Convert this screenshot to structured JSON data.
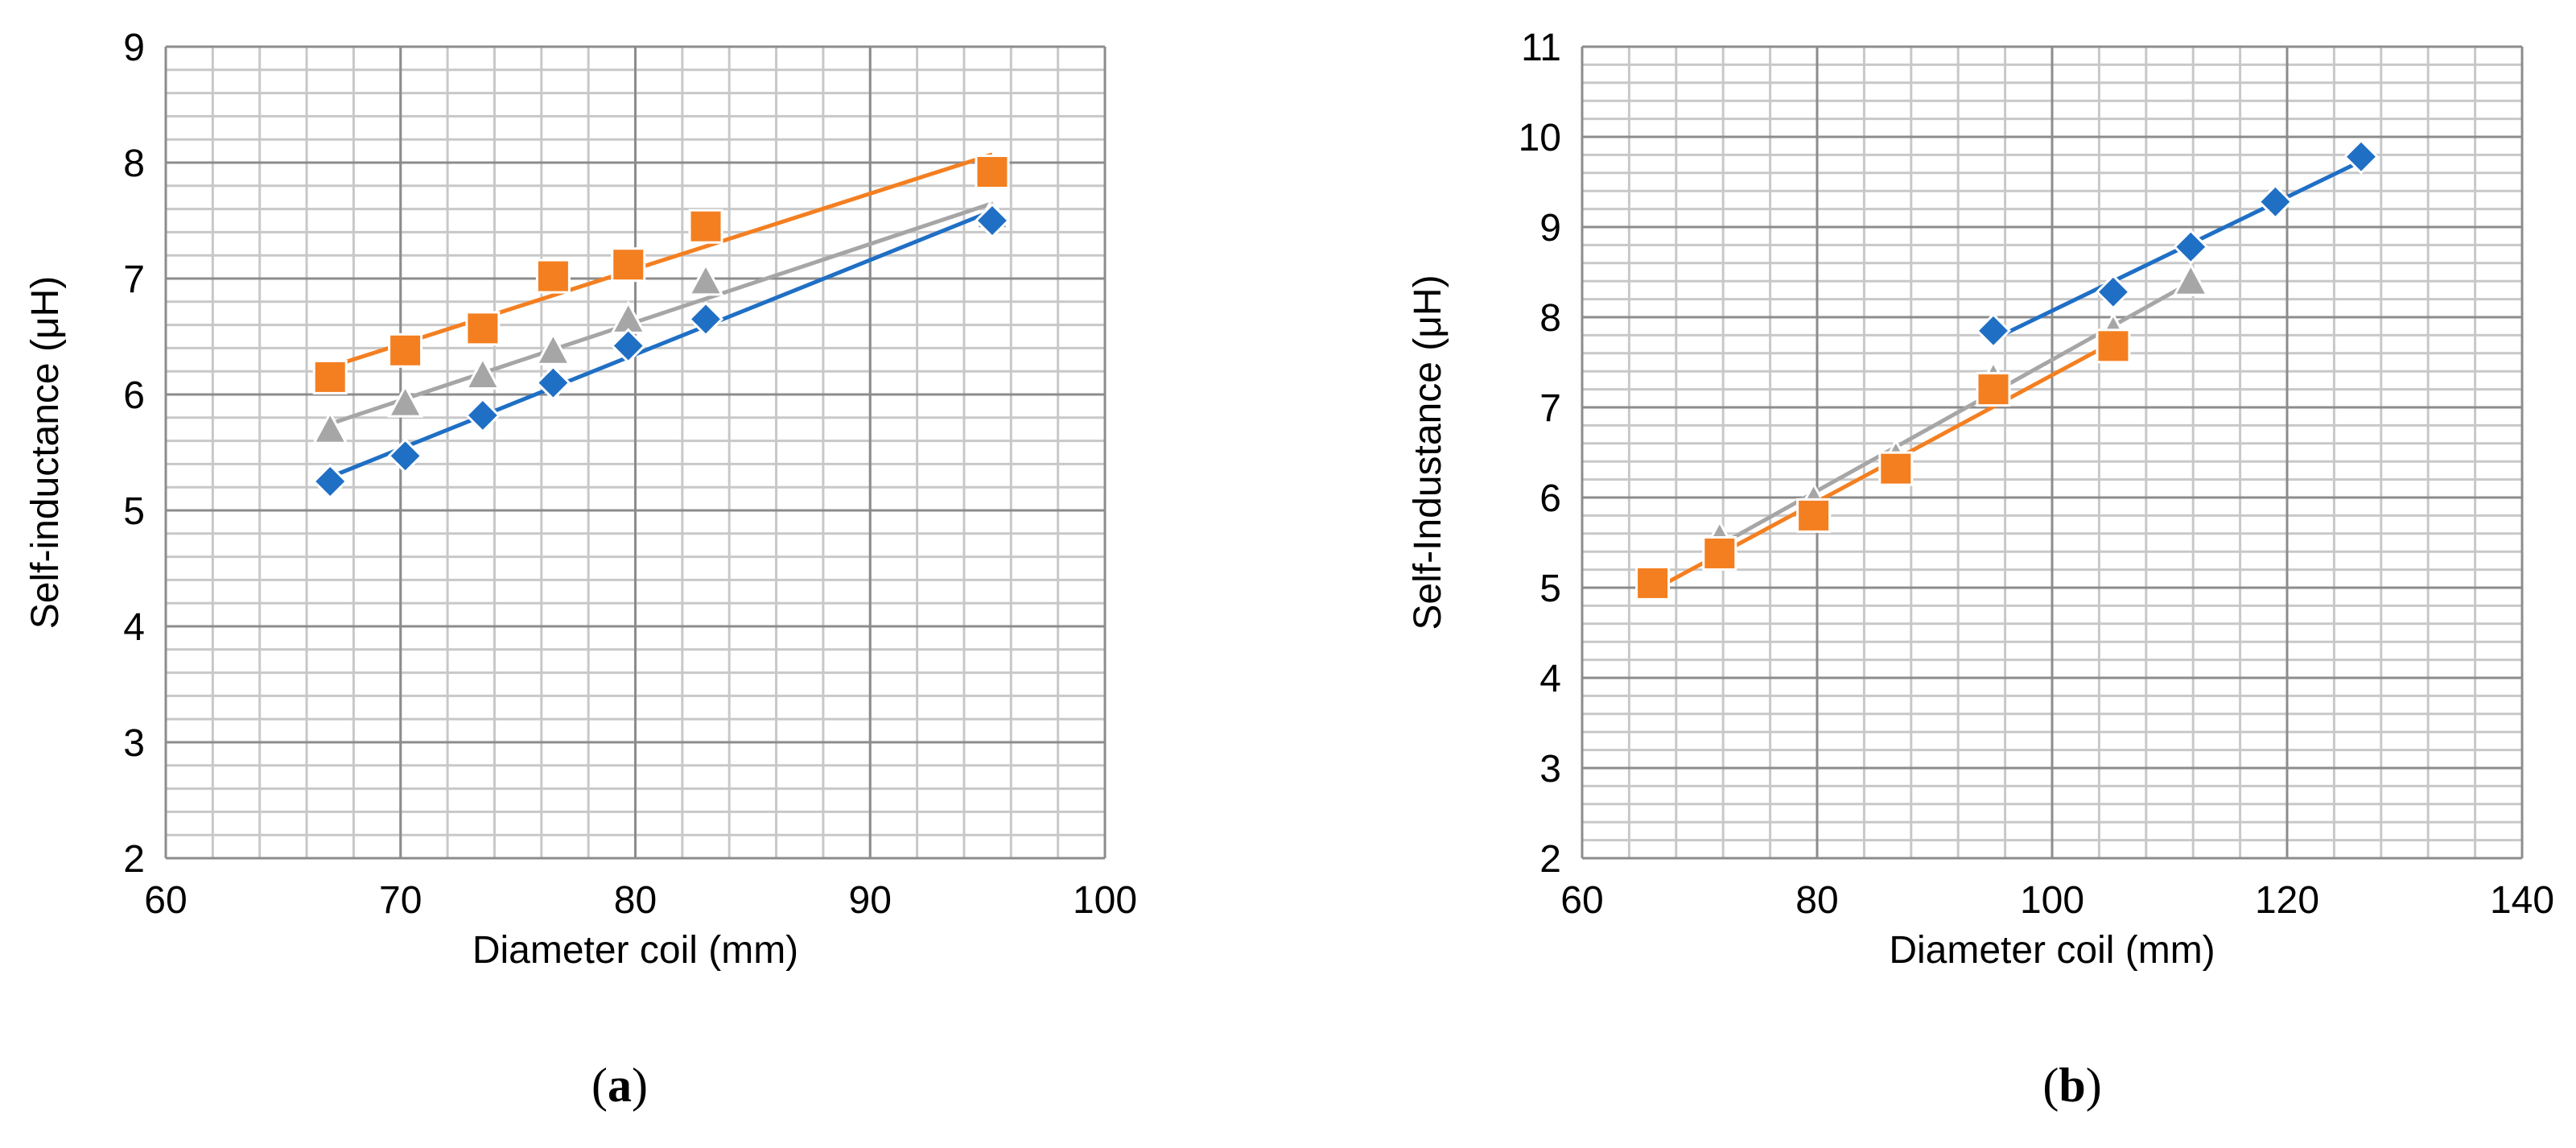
{
  "chart_data": [
    {
      "type": "scatter",
      "panel": "a",
      "panel_open": "(",
      "panel_letter": "a",
      "panel_close": ")",
      "title": "",
      "xlabel": "Diameter coil (mm)",
      "ylabel": "Self-inductance (μH)",
      "xlim": [
        60,
        100
      ],
      "ylim": [
        2,
        9
      ],
      "xticks": [
        "60",
        "70",
        "80",
        "90",
        "100"
      ],
      "yticks": [
        "2",
        "3",
        "4",
        "5",
        "6",
        "7",
        "8",
        "9"
      ],
      "x_minor_step": 2,
      "y_minor_step": 0.2,
      "grid": true,
      "legend": "none",
      "series": [
        {
          "name": "blue",
          "color": "#1f6fc5",
          "marker": "diamond",
          "trendline": "linear",
          "x": [
            67,
            70.2,
            73.5,
            76.5,
            79.7,
            83,
            95.2
          ],
          "y": [
            5.25,
            5.47,
            5.82,
            6.1,
            6.42,
            6.65,
            7.5
          ]
        },
        {
          "name": "orange",
          "color": "#f47f20",
          "marker": "square",
          "trendline": "linear",
          "x": [
            67,
            70.2,
            73.5,
            76.5,
            79.7,
            83,
            95.2
          ],
          "y": [
            6.15,
            6.38,
            6.57,
            7.02,
            7.12,
            7.45,
            7.92
          ]
        },
        {
          "name": "gray",
          "color": "#a6a6a6",
          "marker": "triangle",
          "trendline": "linear",
          "x": [
            67,
            70.2,
            73.5,
            76.5,
            79.7,
            83,
            95.2
          ],
          "y": [
            5.7,
            5.93,
            6.17,
            6.38,
            6.65,
            6.98,
            7.55
          ]
        }
      ]
    },
    {
      "type": "scatter",
      "panel": "b",
      "panel_open": "(",
      "panel_letter": "b",
      "panel_close": ")",
      "title": "",
      "xlabel": "Diameter coil (mm)",
      "ylabel": "Self-Industance (μH)",
      "xlim": [
        60,
        140
      ],
      "ylim": [
        2,
        11
      ],
      "xticks": [
        "60",
        "80",
        "100",
        "120",
        "140"
      ],
      "yticks": [
        "2",
        "3",
        "4",
        "5",
        "6",
        "7",
        "8",
        "9",
        "10",
        "11"
      ],
      "x_minor_step": 4,
      "y_minor_step": 0.2,
      "grid": true,
      "legend": "none",
      "series": [
        {
          "name": "blue",
          "color": "#1f6fc5",
          "marker": "diamond",
          "trendline": "linear",
          "x": [
            95,
            105.2,
            111.8,
            119,
            126.3
          ],
          "y": [
            7.85,
            8.28,
            8.78,
            9.28,
            9.78
          ]
        },
        {
          "name": "orange",
          "color": "#f47f20",
          "marker": "square",
          "trendline": "linear",
          "x": [
            66,
            71.7,
            79.7,
            86.7,
            95,
            105.2
          ],
          "y": [
            5.05,
            5.38,
            5.8,
            6.32,
            7.2,
            7.68
          ]
        },
        {
          "name": "gray",
          "color": "#a6a6a6",
          "marker": "triangle",
          "trendline": "linear",
          "x": [
            71.7,
            79.7,
            86.7,
            95,
            105.2,
            111.8
          ],
          "y": [
            5.55,
            5.97,
            6.45,
            7.32,
            7.85,
            8.4
          ]
        }
      ]
    }
  ]
}
